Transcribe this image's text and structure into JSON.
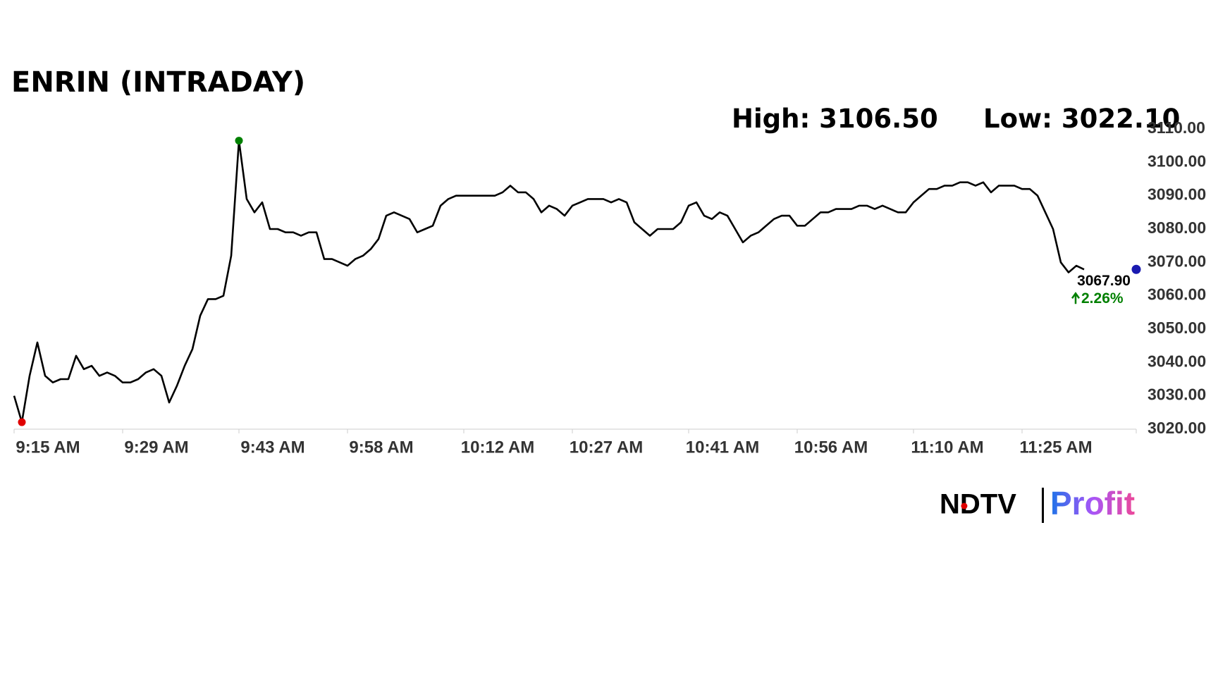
{
  "chart_data": {
    "type": "line",
    "title": "ENRIN (INTRADAY)",
    "high_label": "High:",
    "high": {
      "value": 3106.5,
      "label": "3106.50"
    },
    "low_label": "Low:",
    "low": {
      "value": 3022.1,
      "label": "3022.10"
    },
    "last": {
      "value": 3067.9,
      "label": "3067.90"
    },
    "change": {
      "value": 2.26,
      "label": "2.26%"
    },
    "categories": [
      "9:15 AM",
      null,
      null,
      null,
      null,
      null,
      null,
      null,
      null,
      null,
      null,
      null,
      null,
      null,
      "9:29 AM",
      null,
      null,
      null,
      null,
      null,
      null,
      null,
      null,
      null,
      null,
      null,
      null,
      null,
      null,
      "9:43 AM",
      null,
      null,
      null,
      null,
      null,
      null,
      null,
      null,
      null,
      null,
      null,
      null,
      null,
      "9:58 AM",
      null,
      null,
      null,
      null,
      null,
      null,
      null,
      null,
      null,
      null,
      null,
      null,
      null,
      null,
      "10:12 AM",
      null,
      null,
      null,
      null,
      null,
      null,
      null,
      null,
      null,
      null,
      null,
      null,
      null,
      "10:27 AM",
      null,
      null,
      null,
      null,
      null,
      null,
      null,
      null,
      null,
      null,
      null,
      null,
      null,
      null,
      "10:41 AM",
      null,
      null,
      null,
      null,
      null,
      null,
      null,
      null,
      null,
      null,
      null,
      null,
      null,
      "10:56 AM",
      null,
      null,
      null,
      null,
      null,
      null,
      null,
      null,
      null,
      null,
      null,
      null,
      null,
      null,
      "11:10 AM",
      null,
      null,
      null,
      null,
      null,
      null,
      null,
      null,
      null,
      null,
      null,
      null,
      null,
      "11:25 AM",
      null,
      null,
      null,
      null,
      null,
      null,
      null,
      null
    ],
    "series": [
      {
        "name": "ENRIN",
        "color": "#000000",
        "values": [
          3030,
          3022.1,
          3036,
          3046,
          3036,
          3034,
          3035,
          3035,
          3042,
          3038,
          3039,
          3036,
          3037,
          3036,
          3034,
          3034,
          3035,
          3037,
          3038,
          3036,
          3028,
          3033,
          3039,
          3044,
          3054,
          3059,
          3059,
          3060,
          3072,
          3106.5,
          3089,
          3085,
          3088,
          3080,
          3080,
          3079,
          3079,
          3078,
          3079,
          3079,
          3071,
          3071,
          3070,
          3069,
          3071,
          3072,
          3074,
          3077,
          3084,
          3085,
          3084,
          3083,
          3079,
          3080,
          3081,
          3087,
          3089,
          3090,
          3090,
          3090,
          3090,
          3090,
          3090,
          3091,
          3093,
          3091,
          3091,
          3089,
          3085,
          3087,
          3086,
          3084,
          3087,
          3088,
          3089,
          3089,
          3089,
          3088,
          3089,
          3088,
          3082,
          3080,
          3078,
          3080,
          3080,
          3080,
          3082,
          3087,
          3088,
          3084,
          3083,
          3085,
          3084,
          3080,
          3076,
          3078,
          3079,
          3081,
          3083,
          3084,
          3084,
          3081,
          3081,
          3083,
          3085,
          3085,
          3086,
          3086,
          3086,
          3087,
          3087,
          3086,
          3087,
          3086,
          3085,
          3085,
          3088,
          3090,
          3092,
          3092,
          3093,
          3093,
          3094,
          3094,
          3093,
          3094,
          3091,
          3093,
          3093,
          3093,
          3092,
          3092,
          3090,
          3085,
          3080,
          3070,
          3067,
          3069,
          3067.9
        ]
      }
    ],
    "low_color": "#e00000",
    "high_color": "#008000",
    "last_color": "#1a1ab0",
    "change_color": "#008000",
    "ylim": [
      3020,
      3110
    ],
    "yticks": [
      {
        "value": 3020,
        "label": "3020.00"
      },
      {
        "value": 3030,
        "label": "3030.00"
      },
      {
        "value": 3040,
        "label": "3040.00"
      },
      {
        "value": 3050,
        "label": "3050.00"
      },
      {
        "value": 3060,
        "label": "3060.00"
      },
      {
        "value": 3070,
        "label": "3070.00"
      },
      {
        "value": 3080,
        "label": "3080.00"
      },
      {
        "value": 3090,
        "label": "3090.00"
      },
      {
        "value": 3100,
        "label": "3100.00"
      },
      {
        "value": 3110,
        "label": "3110.00"
      }
    ],
    "grid": false,
    "brand": {
      "left": "NDTV",
      "right": "Profit"
    }
  }
}
